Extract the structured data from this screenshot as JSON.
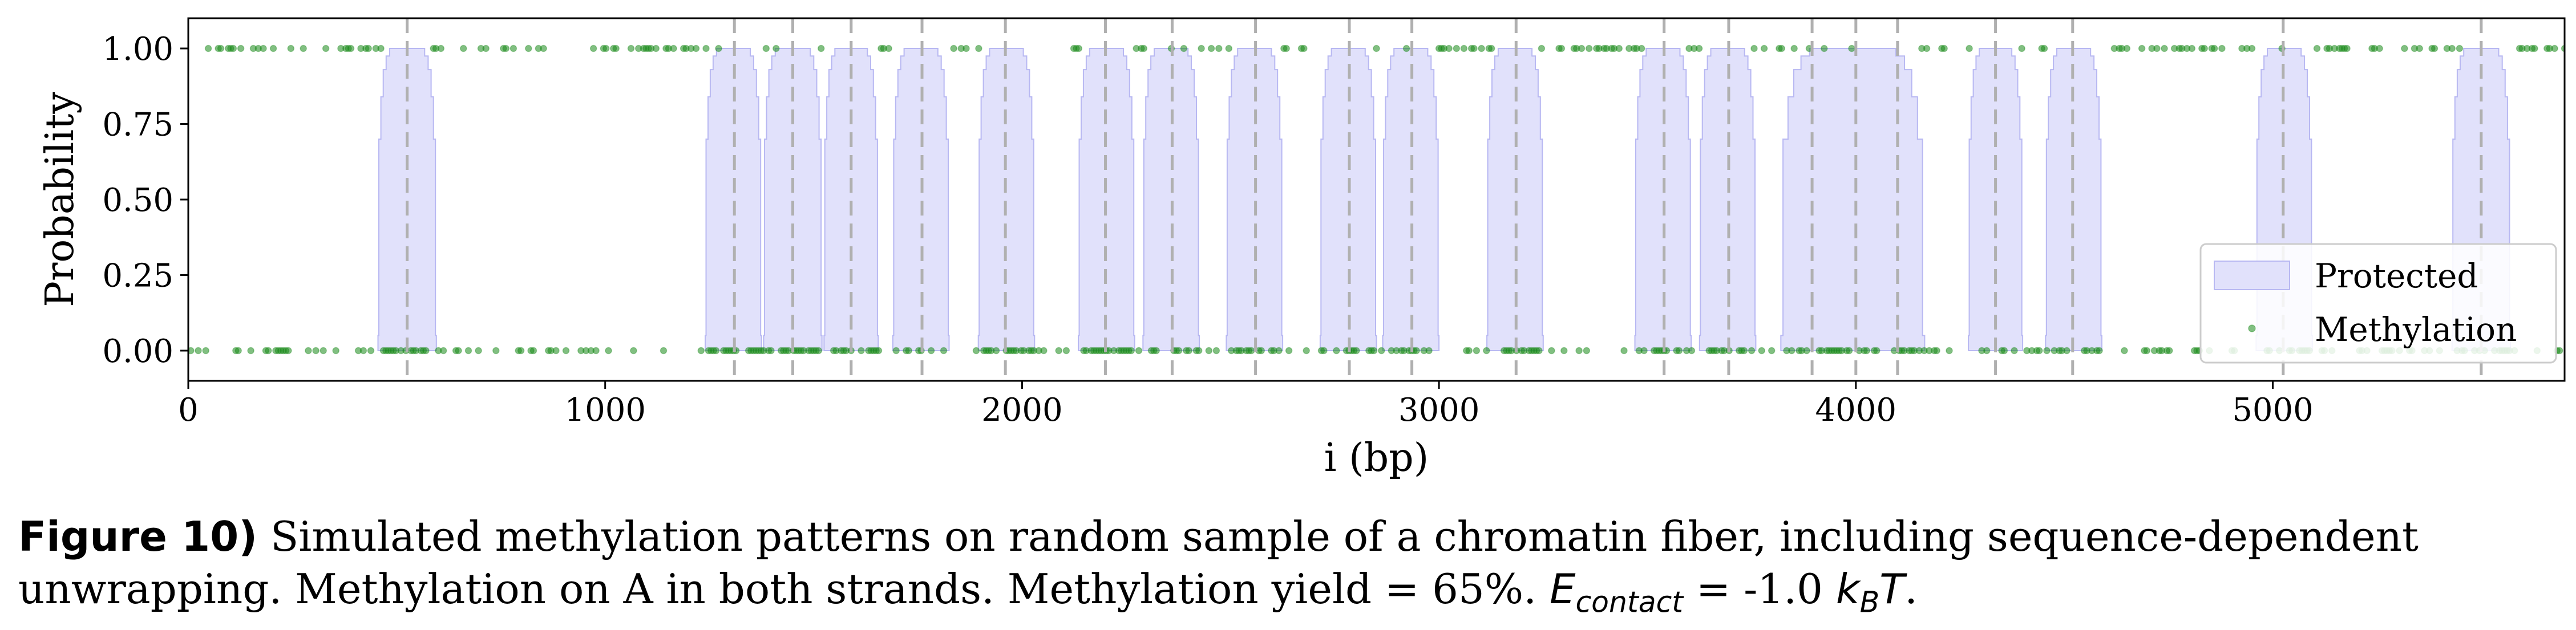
{
  "caption": {
    "label": "Figure 10)",
    "text": " Simulated methylation patterns on random sample of a chromatin fiber, including sequence-dependent unwrapping. Methylation on A in both strands. Methylation yield = 65%. ",
    "energy_symbol": "E",
    "energy_subscript": "contact",
    "energy_value": " = -1.0 ",
    "unit_k": "k",
    "unit_sub": "B",
    "unit_T": "T",
    "unit_end": "."
  },
  "chart_data": {
    "type": "area",
    "xlabel": "i (bp)",
    "ylabel": "Probability",
    "xlim": [
      0,
      5700
    ],
    "ylim": [
      -0.1,
      1.1
    ],
    "xticks": [
      0,
      1000,
      2000,
      3000,
      4000,
      5000
    ],
    "yticks": [
      "0.00",
      "0.25",
      "0.50",
      "0.75",
      "1.00"
    ],
    "grid": false,
    "legend_position": "bottom-right",
    "colors": {
      "protected_fill": "#e1e1fb",
      "protected_edge": "#b8b8f2",
      "methylation": "#1a8a1a",
      "dyad_line": "#b0b0b0"
    },
    "series": [
      {
        "name": "Protected",
        "kind": "area",
        "regions": [
          [
            455,
            595
          ],
          [
            1240,
            1375
          ],
          [
            1380,
            1520
          ],
          [
            1525,
            1655
          ],
          [
            1690,
            1825
          ],
          [
            1895,
            2030
          ],
          [
            2135,
            2270
          ],
          [
            2290,
            2425
          ],
          [
            2490,
            2625
          ],
          [
            2715,
            2850
          ],
          [
            2865,
            3000
          ],
          [
            3115,
            3250
          ],
          [
            3470,
            3605
          ],
          [
            3625,
            3760
          ],
          [
            3820,
            4165
          ],
          [
            4270,
            4400
          ],
          [
            4455,
            4590
          ],
          [
            4960,
            5095
          ],
          [
            5430,
            5570
          ]
        ],
        "dyads": [
          525,
          1310,
          1450,
          1590,
          1760,
          1960,
          2200,
          2360,
          2560,
          2785,
          2935,
          3185,
          3540,
          3695,
          3895,
          4000,
          4100,
          4335,
          4520,
          5025,
          5500
        ]
      },
      {
        "name": "Methylation",
        "kind": "scatter",
        "y_values": [
          0,
          1
        ]
      }
    ]
  }
}
